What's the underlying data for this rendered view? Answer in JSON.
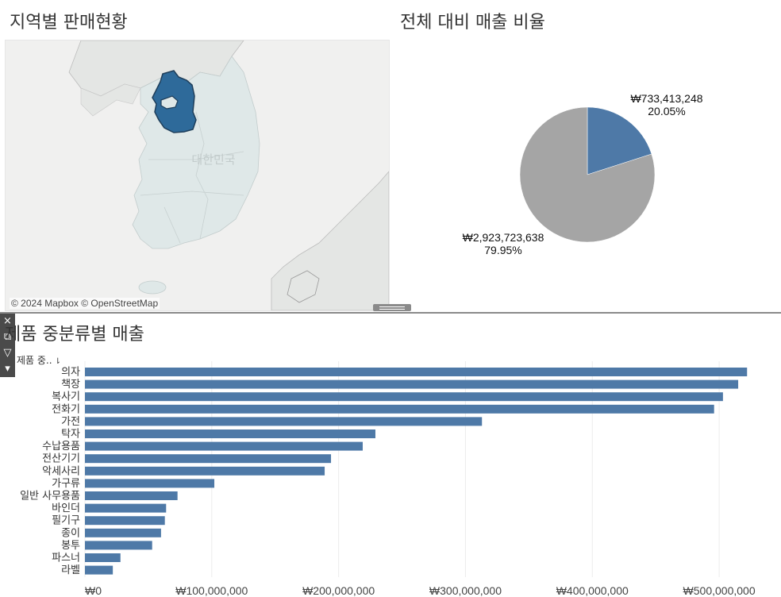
{
  "map_panel": {
    "title": "지역별 판매현황",
    "country_label": "대한민국",
    "attribution": "© 2024 Mapbox © OpenStreetMap"
  },
  "pie_panel": {
    "title": "전체 대비 매출 비율"
  },
  "bar_panel": {
    "title": "제품 중분류별 매출",
    "header_label": "제품 중.."
  },
  "toolbar": {
    "close_icon": "×",
    "popout_icon": "⧉",
    "filter_icon": "▽",
    "menu_icon": "▾"
  },
  "colors": {
    "accent": "#4e79a7",
    "pie_rest": "#a5a5a5",
    "region_fill": "#2e6a9a",
    "land": "#dfe8e8",
    "sea": "#f0f0ef"
  },
  "chart_data": [
    {
      "type": "pie",
      "title": "전체 대비 매출 비율",
      "slices": [
        {
          "value": 733413248,
          "value_label": "₩733,413,248",
          "percent_label": "20.05%",
          "color": "#4e79a7"
        },
        {
          "value": 2923723638,
          "value_label": "₩2,923,723,638",
          "percent_label": "79.95%",
          "color": "#a5a5a5"
        }
      ]
    },
    {
      "type": "bar",
      "orientation": "horizontal",
      "title": "제품 중분류별 매출",
      "categories": [
        "의자",
        "책장",
        "복사기",
        "전화기",
        "가전",
        "탁자",
        "수납용품",
        "전산기기",
        "악세사리",
        "가구류",
        "일반 사무용품",
        "바인더",
        "필기구",
        "종이",
        "봉투",
        "파스너",
        "라벨"
      ],
      "values": [
        522000000,
        515000000,
        503000000,
        496000000,
        313000000,
        229000000,
        219000000,
        194000000,
        189000000,
        102000000,
        73000000,
        64000000,
        63000000,
        60000000,
        53000000,
        28000000,
        22000000
      ],
      "xlim": [
        0,
        545000000
      ],
      "x_ticks": [
        0,
        100000000,
        200000000,
        300000000,
        400000000,
        500000000
      ],
      "x_tick_labels": [
        "₩0",
        "₩100,000,000",
        "₩200,000,000",
        "₩300,000,000",
        "₩400,000,000",
        "₩500,000,000"
      ],
      "grid": true,
      "color": "#4e79a7"
    }
  ]
}
